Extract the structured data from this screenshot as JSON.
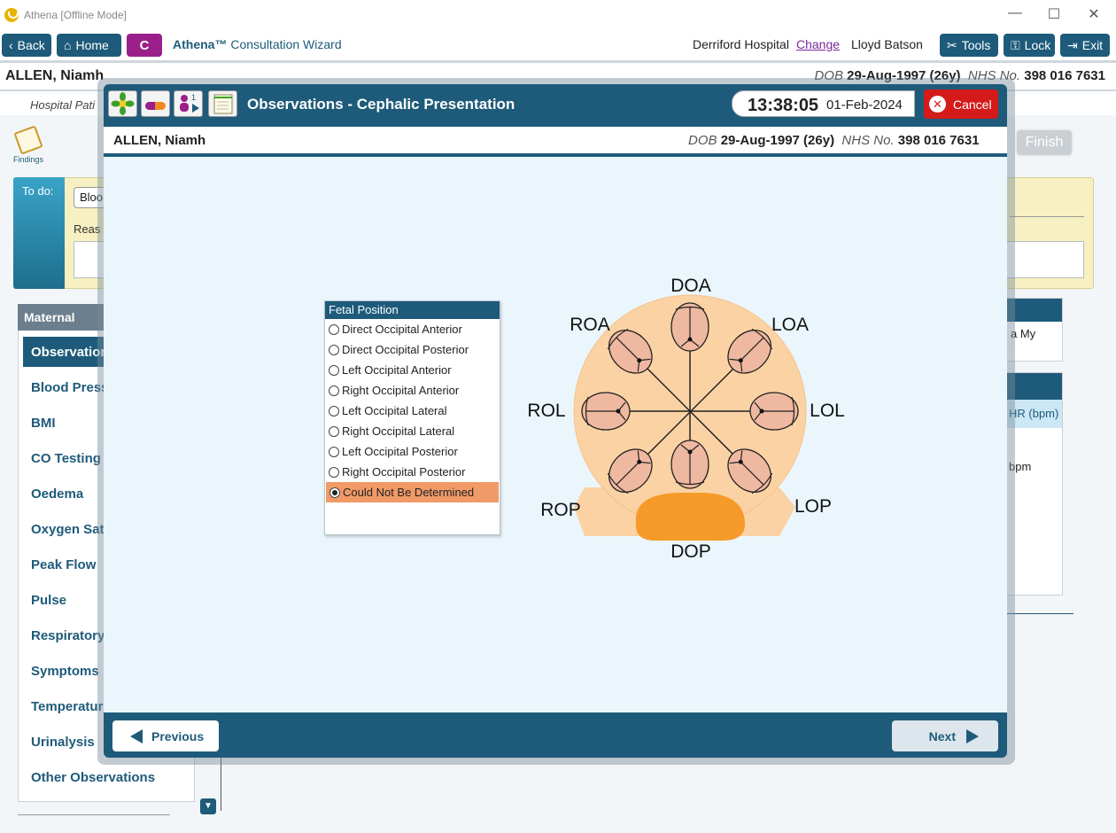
{
  "window": {
    "title": "Athena [Offline Mode]",
    "controls": {
      "minimize": "—",
      "maximize": "☐",
      "close": "✕"
    }
  },
  "toolbar": {
    "back_label": "Back",
    "home_label": "Home",
    "c_label": "C",
    "wizard_brand": "Athena™",
    "wizard_name": "Consultation Wizard",
    "hospital": "Derriford Hospital",
    "change_label": "Change",
    "user": "Lloyd Batson",
    "tools_label": "Tools",
    "lock_label": "Lock",
    "exit_label": "Exit"
  },
  "patient": {
    "name": "ALLEN, Niamh",
    "dob_label": "DOB",
    "dob": "29-Aug-1997 (26y)",
    "nhs_label": "NHS No.",
    "nhs": "398 016 7631"
  },
  "background": {
    "hospital_patient": "Hospital Pati",
    "findings_label": "Findings",
    "finish_label": "Finish",
    "todo_label": "To do:",
    "todo_pill": "Bloo",
    "todo_reason": "Reas",
    "left_header": "Maternal",
    "left_items": [
      "Observations",
      "Blood Pressure",
      "BMI",
      "CO Testing",
      "Oedema",
      "Oxygen Saturation",
      "Peak Flow",
      "Pulse",
      "Respiratory",
      "Symptoms",
      "Temperature",
      "Urinalysis",
      "Other Observations"
    ],
    "right_card1_text": "a My",
    "right_card2_sub": "HR (bpm)",
    "right_card2_text": "bpm"
  },
  "modal": {
    "title": "Observations - Cephalic Presentation",
    "time": "13:38:05",
    "date": "01-Feb-2024",
    "cancel_label": "Cancel",
    "previous_label": "Previous",
    "next_label": "Next"
  },
  "fetal_position": {
    "header": "Fetal Position",
    "options": [
      "Direct Occipital Anterior",
      "Direct Occipital Posterior",
      "Left Occipital Anterior",
      "Right Occipital Anterior",
      "Left Occipital Lateral",
      "Right Occipital Lateral",
      "Left Occipital Posterior",
      "Right Occipital Posterior",
      "Could Not Be Determined"
    ],
    "selected_index": 8
  },
  "diagram_labels": {
    "doa": "DOA",
    "roa": "ROA",
    "loa": "LOA",
    "rol": "ROL",
    "lol": "LOL",
    "rop": "ROP",
    "lop": "LOP",
    "dop": "DOP"
  },
  "colors": {
    "primary": "#1e5b7a",
    "cancel": "#d51a1a",
    "selected": "#f09a68",
    "c_button": "#9b1f8a"
  }
}
